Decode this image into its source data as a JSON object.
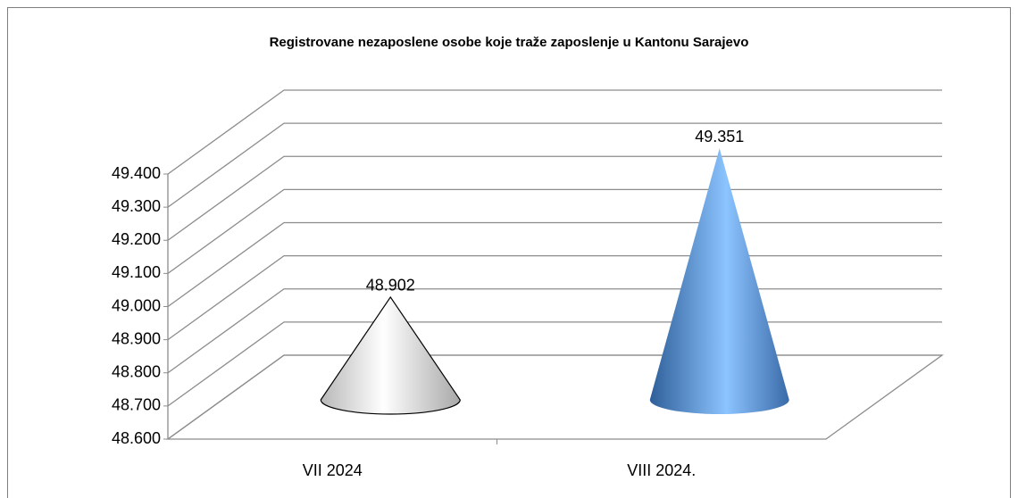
{
  "chart_data": {
    "type": "cone",
    "title": "Registrovane nezaposlene osobe koje traže zaposlenje u Kantonu Sarajevo",
    "categories": [
      "VII 2024",
      "VIII 2024."
    ],
    "values": [
      48902,
      49351
    ],
    "value_labels": [
      "48.902",
      "49.351"
    ],
    "colors": [
      "#ffffff",
      "#4f81bd"
    ],
    "ylim": [
      48600,
      49400
    ],
    "yticks": [
      {
        "value": 48600,
        "label": "48.600"
      },
      {
        "value": 48700,
        "label": "48.700"
      },
      {
        "value": 48800,
        "label": "48.800"
      },
      {
        "value": 48900,
        "label": "48.900"
      },
      {
        "value": 49000,
        "label": "49.000"
      },
      {
        "value": 49100,
        "label": "49.100"
      },
      {
        "value": 49200,
        "label": "49.200"
      },
      {
        "value": 49300,
        "label": "49.300"
      },
      {
        "value": 49400,
        "label": "49.400"
      }
    ],
    "grid": true
  }
}
